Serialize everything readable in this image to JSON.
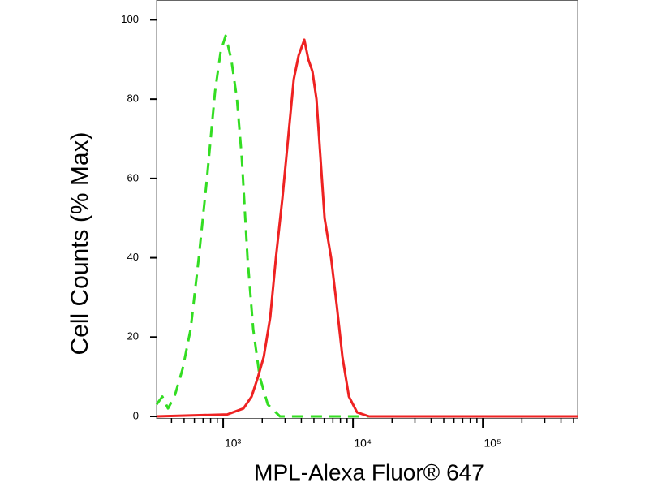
{
  "chart_data": {
    "type": "line",
    "xlabel": "MPL-Alexa Fluor® 647",
    "ylabel": "Cell Counts (% Max)",
    "xscale": "log",
    "xlim": [
      307,
      537000
    ],
    "ylim": [
      0,
      105
    ],
    "xticks": [
      {
        "value": 1000,
        "label": "10³"
      },
      {
        "value": 10000,
        "label": "10⁴"
      },
      {
        "value": 100000,
        "label": "10⁵"
      }
    ],
    "xminorticks": [
      400,
      500,
      600,
      700,
      800,
      900,
      2000,
      3000,
      4000,
      5000,
      6000,
      7000,
      8000,
      9000,
      20000,
      30000,
      40000,
      50000,
      60000,
      70000,
      80000,
      90000,
      200000,
      300000,
      400000,
      500000
    ],
    "yticks": [
      0,
      20,
      40,
      60,
      80,
      100
    ],
    "series": [
      {
        "color": "#33dd22",
        "dash": true,
        "x": [
          307,
          340,
          376,
          422,
          487,
          562,
          649,
          750,
          866,
          957,
          1044,
          1155,
          1277,
          1393,
          1540,
          1703,
          1911,
          2207,
          2738,
          12400,
          537000
        ],
        "values": [
          3,
          5,
          2,
          5,
          12,
          22,
          40,
          60,
          82,
          92,
          96,
          90,
          80,
          65,
          40,
          22,
          10,
          3,
          0,
          0,
          0
        ]
      },
      {
        "color": "#ee2222",
        "dash": false,
        "x": [
          307,
          1075,
          1433,
          1655,
          1858,
          2054,
          2305,
          2549,
          2860,
          3162,
          3497,
          3813,
          4217,
          4532,
          4870,
          5233,
          5623,
          6043,
          6777,
          7499,
          8295,
          9306,
          10750,
          13335,
          537000
        ],
        "values": [
          0,
          0.5,
          2,
          5,
          10,
          15,
          25,
          40,
          55,
          70,
          85,
          91,
          95,
          90,
          87,
          80,
          65,
          50,
          40,
          28,
          15,
          5,
          1,
          0,
          0
        ]
      }
    ]
  }
}
